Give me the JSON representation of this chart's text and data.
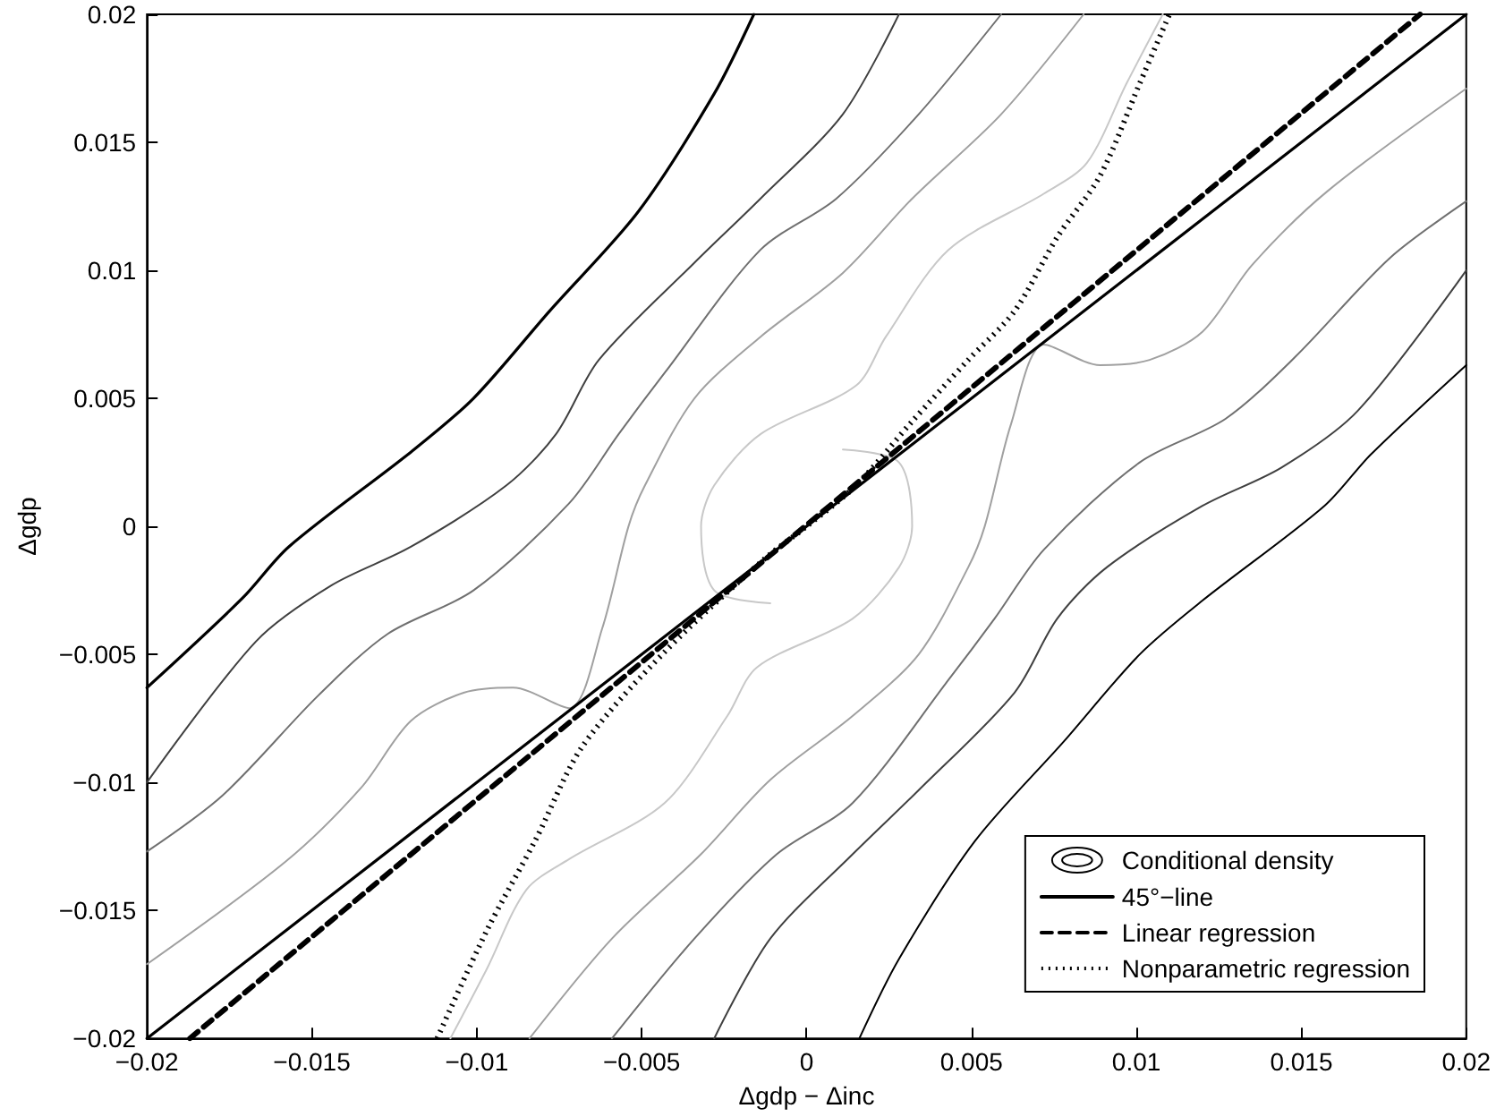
{
  "chart_data": {
    "type": "line",
    "xlabel": "Δgdp − Δinc",
    "ylabel": "Δgdp",
    "xlim": [
      -0.02,
      0.02
    ],
    "ylim": [
      -0.02,
      0.02
    ],
    "xticks": [
      {
        "value": -0.02,
        "label": "−0.02"
      },
      {
        "value": -0.015,
        "label": "−0.015"
      },
      {
        "value": -0.01,
        "label": "−0.01"
      },
      {
        "value": -0.005,
        "label": "−0.005"
      },
      0,
      0.005,
      0.01,
      0.015,
      0.02
    ],
    "yticks": [
      {
        "value": -0.02,
        "label": "−0.02"
      },
      {
        "value": -0.015,
        "label": "−0.015"
      },
      {
        "value": -0.01,
        "label": "−0.01"
      },
      {
        "value": -0.005,
        "label": "−0.005"
      },
      0,
      0.005,
      0.01,
      0.015,
      0.02
    ],
    "grid": false,
    "legend": "bottom right",
    "marker": "none",
    "series": [
      {
        "name": "Conditional density",
        "color": "#000000",
        "line_style": "solid",
        "x": [
          -0.0016,
          -0.0028,
          -0.0051,
          -0.0078,
          -0.0101,
          -0.012,
          -0.0157,
          -0.0171,
          -0.02
        ],
        "values": [
          0.02,
          0.0169,
          0.0123,
          0.0084,
          0.005,
          0.0029,
          -0.0008,
          -0.0028,
          -0.0063
        ]
      },
      {
        "color": "#404040",
        "line_style": "solid",
        "x": [
          0.0028,
          0.0011,
          -0.0014,
          -0.0034,
          -0.0063,
          -0.0076,
          -0.0091,
          -0.012,
          -0.0144,
          -0.0167,
          -0.02
        ],
        "values": [
          0.02,
          0.0161,
          0.0128,
          0.0103,
          0.0065,
          0.0036,
          0.0016,
          -0.0008,
          -0.0023,
          -0.0045,
          -0.01
        ]
      },
      {
        "color": "#707070",
        "line_style": "solid",
        "x": [
          0.0059,
          0.0034,
          0.0009,
          -0.0014,
          -0.0043,
          -0.0057,
          -0.0072,
          -0.0101,
          -0.0127,
          -0.0148,
          -0.0177,
          -0.02
        ],
        "values": [
          0.02,
          0.0161,
          0.0128,
          0.0108,
          0.006,
          0.0036,
          0.0009,
          -0.0025,
          -0.0042,
          -0.0066,
          -0.0105,
          -0.0127
        ]
      },
      {
        "color": "#a0a0a0",
        "line_style": "solid",
        "x": [
          0.0084,
          0.0059,
          0.0032,
          0.0011,
          -0.0014,
          -0.0034,
          -0.0049,
          -0.0054,
          -0.0062,
          -0.0072,
          -0.0089,
          -0.0104,
          -0.012,
          -0.0135,
          -0.0158,
          -0.02
        ],
        "values": [
          0.02,
          0.0161,
          0.0128,
          0.0099,
          0.0074,
          0.005,
          0.0016,
          0,
          -0.004,
          -0.0071,
          -0.0063,
          -0.0065,
          -0.0076,
          -0.0102,
          -0.0131,
          -0.0171
        ]
      },
      {
        "color": "#c8c8c8",
        "line_style": "solid",
        "x": [
          0.0108,
          0.0097,
          0.0085,
          0.0072,
          0.0043,
          0.0024,
          0.0015,
          -0.0014,
          -0.0028,
          -0.0032,
          -0.0028,
          -0.0011
        ],
        "values": [
          0.02,
          0.0173,
          0.0142,
          0.013,
          0.0108,
          0.0074,
          0.0055,
          0.0036,
          0.0016,
          0,
          -0.0025,
          -0.003
        ]
      },
      {
        "color": "#000000",
        "line_style": "solid",
        "x": [
          0.0016,
          0.0028,
          0.0051,
          0.0078,
          0.0101,
          0.012,
          0.0157,
          0.0171,
          0.02
        ],
        "values": [
          -0.02,
          -0.0169,
          -0.0123,
          -0.0084,
          -0.005,
          -0.0029,
          0.0008,
          0.0028,
          0.0063
        ]
      },
      {
        "color": "#404040",
        "line_style": "solid",
        "x": [
          -0.0028,
          -0.0011,
          0.0014,
          0.0034,
          0.0063,
          0.0076,
          0.0091,
          0.012,
          0.0144,
          0.0167,
          0.02
        ],
        "values": [
          -0.02,
          -0.0161,
          -0.0128,
          -0.0103,
          -0.0065,
          -0.0036,
          -0.0016,
          0.0008,
          0.0023,
          0.0045,
          0.01
        ]
      },
      {
        "color": "#707070",
        "line_style": "solid",
        "x": [
          -0.0059,
          -0.0034,
          -0.0009,
          0.0014,
          0.0043,
          0.0057,
          0.0072,
          0.0101,
          0.0127,
          0.0148,
          0.0177,
          0.02
        ],
        "values": [
          -0.02,
          -0.0161,
          -0.0128,
          -0.0108,
          -0.006,
          -0.0036,
          -0.0009,
          0.0025,
          0.0042,
          0.0066,
          0.0105,
          0.0127
        ]
      },
      {
        "color": "#a0a0a0",
        "line_style": "solid",
        "x": [
          -0.0084,
          -0.0059,
          -0.0032,
          -0.0011,
          0.0014,
          0.0034,
          0.0049,
          0.0054,
          0.0062,
          0.0072,
          0.0089,
          0.0104,
          0.012,
          0.0135,
          0.0158,
          0.02
        ],
        "values": [
          -0.02,
          -0.0161,
          -0.0128,
          -0.0099,
          -0.0074,
          -0.005,
          -0.0016,
          0,
          0.004,
          0.0071,
          0.0063,
          0.0065,
          0.0076,
          0.0102,
          0.0131,
          0.0171
        ]
      },
      {
        "color": "#c8c8c8",
        "line_style": "solid",
        "x": [
          -0.0108,
          -0.0097,
          -0.0085,
          -0.0072,
          -0.0043,
          -0.0024,
          -0.0015,
          0.0014,
          0.0028,
          0.0032,
          0.0028,
          0.0011
        ],
        "values": [
          -0.02,
          -0.0173,
          -0.0142,
          -0.013,
          -0.0108,
          -0.0074,
          -0.0055,
          -0.0036,
          -0.0016,
          0,
          0.0025,
          0.003
        ]
      },
      {
        "name": "45°−line",
        "color": "#000000",
        "line_style": "solid",
        "x": [
          -0.02,
          0.02
        ],
        "values": [
          -0.02,
          0.02
        ]
      },
      {
        "name": "Linear regression",
        "color": "#000000",
        "line_style": "dashed",
        "x": [
          -0.0187,
          0.0186
        ],
        "values": [
          -0.02,
          0.02
        ]
      },
      {
        "name": "Nonparametric regression",
        "color": "#000000",
        "line_style": "dotted",
        "x": [
          -0.0112,
          -0.0097,
          -0.0082,
          -0.0068,
          -0.0043,
          -0.0013,
          0,
          0.0015,
          0.0032,
          0.0049,
          0.0063,
          0.0076,
          0.0089,
          0.0101,
          0.011
        ],
        "values": [
          -0.02,
          -0.0158,
          -0.0122,
          -0.0086,
          -0.0049,
          -0.0013,
          0,
          0.0016,
          0.0041,
          0.0065,
          0.0084,
          0.0113,
          0.0137,
          0.0173,
          0.02
        ]
      }
    ]
  }
}
